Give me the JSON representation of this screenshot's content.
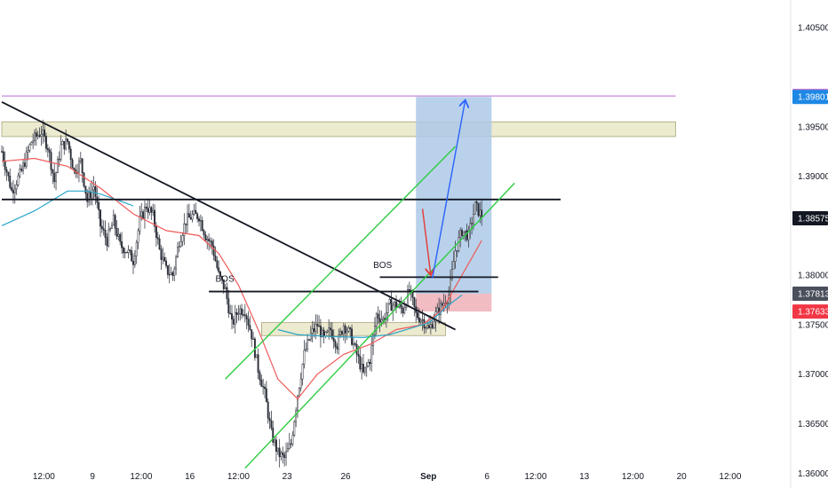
{
  "chart_data": {
    "type": "candlestick",
    "symbol_pair_note": "",
    "y_axis": {
      "ylim": [
        1.3585,
        1.4078
      ],
      "ticks": [
        "1.40500",
        "1.39500",
        "1.39000",
        "1.38000",
        "1.37500",
        "1.37000",
        "1.36500",
        "1.36000"
      ],
      "tick_values": [
        1.405,
        1.395,
        1.39,
        1.38,
        1.375,
        1.37,
        1.365,
        1.36
      ],
      "price_tags": [
        {
          "text": "1.39811",
          "value": 1.39811,
          "bg": "#c76fd1",
          "fg": "#ffffff"
        },
        {
          "text": "1.39801",
          "value": 1.39801,
          "bg": "#1e88e5",
          "fg": "#ffffff"
        },
        {
          "text": "1.38575",
          "value": 1.38575,
          "bg": "#131722",
          "fg": "#ffffff"
        },
        {
          "text": "1.37813",
          "value": 1.37813,
          "bg": "#4a4f5c",
          "fg": "#ffffff"
        },
        {
          "text": "1.37633",
          "value": 1.37633,
          "bg": "#f23645",
          "fg": "#ffffff"
        }
      ]
    },
    "x_axis": {
      "ticks": [
        "12:00",
        "9",
        "12:00",
        "16",
        "12:00",
        "23",
        "26",
        "Sep",
        "6",
        "12:00",
        "13",
        "12:00",
        "20",
        "12:00"
      ],
      "tick_index": [
        12.8,
        27.6,
        42.4,
        57.2,
        72.0,
        86.8,
        104.6,
        129.8,
        147.6,
        162.4,
        177.2,
        192.0,
        206.8,
        221.6
      ],
      "bold": [
        "Sep"
      ]
    },
    "price_path": [
      [
        0,
        1.3925
      ],
      [
        3,
        1.3885
      ],
      [
        6,
        1.3905
      ],
      [
        9,
        1.3935
      ],
      [
        12,
        1.3945
      ],
      [
        14,
        1.393
      ],
      [
        16,
        1.3895
      ],
      [
        18,
        1.393
      ],
      [
        20,
        1.3935
      ],
      [
        22,
        1.3905
      ],
      [
        24,
        1.3915
      ],
      [
        26,
        1.3875
      ],
      [
        28,
        1.389
      ],
      [
        30,
        1.385
      ],
      [
        32,
        1.3835
      ],
      [
        34,
        1.3855
      ],
      [
        36,
        1.383
      ],
      [
        38,
        1.3825
      ],
      [
        40,
        1.3815
      ],
      [
        42,
        1.3855
      ],
      [
        44,
        1.387
      ],
      [
        46,
        1.386
      ],
      [
        48,
        1.3825
      ],
      [
        50,
        1.3805
      ],
      [
        52,
        1.38
      ],
      [
        54,
        1.3835
      ],
      [
        56,
        1.3855
      ],
      [
        58,
        1.386
      ],
      [
        60,
        1.386
      ],
      [
        62,
        1.384
      ],
      [
        64,
        1.383
      ],
      [
        66,
        1.38
      ],
      [
        68,
        1.3785
      ],
      [
        70,
        1.375
      ],
      [
        72,
        1.3765
      ],
      [
        74,
        1.3765
      ],
      [
        76,
        1.374
      ],
      [
        78,
        1.3705
      ],
      [
        80,
        1.368
      ],
      [
        82,
        1.364
      ],
      [
        84,
        1.362
      ],
      [
        86,
        1.3615
      ],
      [
        88,
        1.363
      ],
      [
        90,
        1.368
      ],
      [
        92,
        1.372
      ],
      [
        94,
        1.374
      ],
      [
        96,
        1.375
      ],
      [
        98,
        1.3735
      ],
      [
        100,
        1.3745
      ],
      [
        102,
        1.373
      ],
      [
        104,
        1.375
      ],
      [
        106,
        1.374
      ],
      [
        108,
        1.372
      ],
      [
        110,
        1.37
      ],
      [
        112,
        1.3715
      ],
      [
        114,
        1.376
      ],
      [
        116,
        1.3755
      ],
      [
        118,
        1.377
      ],
      [
        120,
        1.377
      ],
      [
        122,
        1.3765
      ],
      [
        124,
        1.3785
      ],
      [
        126,
        1.376
      ],
      [
        128,
        1.3755
      ],
      [
        130,
        1.3745
      ],
      [
        132,
        1.376
      ],
      [
        134,
        1.377
      ],
      [
        136,
        1.378
      ],
      [
        138,
        1.3825
      ],
      [
        140,
        1.3845
      ],
      [
        142,
        1.384
      ],
      [
        144,
        1.387
      ],
      [
        146,
        1.386
      ]
    ],
    "moving_averages": [
      {
        "color": "#f05a5a",
        "points": [
          [
            0,
            1.3915
          ],
          [
            10,
            1.3918
          ],
          [
            20,
            1.391
          ],
          [
            30,
            1.3888
          ],
          [
            40,
            1.3862
          ],
          [
            50,
            1.3845
          ],
          [
            60,
            1.384
          ],
          [
            66,
            1.3822
          ],
          [
            72,
            1.379
          ],
          [
            78,
            1.3745
          ],
          [
            84,
            1.3695
          ],
          [
            90,
            1.3675
          ],
          [
            96,
            1.37
          ],
          [
            104,
            1.372
          ],
          [
            112,
            1.373
          ],
          [
            120,
            1.3745
          ],
          [
            128,
            1.375
          ],
          [
            134,
            1.3765
          ],
          [
            140,
            1.38
          ],
          [
            146,
            1.3835
          ]
        ]
      },
      {
        "color": "#2aa6c9",
        "points": [
          [
            0,
            1.385
          ],
          [
            10,
            1.3865
          ],
          [
            20,
            1.3885
          ],
          [
            26,
            1.3885
          ],
          [
            30,
            1.3882
          ],
          [
            36,
            1.3875
          ],
          [
            40,
            1.387
          ]
        ]
      },
      {
        "color": "#2aa6c9",
        "points": [
          [
            84,
            1.3745
          ],
          [
            90,
            1.374
          ],
          [
            100,
            1.3738
          ],
          [
            110,
            1.3737
          ],
          [
            118,
            1.374
          ],
          [
            124,
            1.3746
          ],
          [
            130,
            1.3752
          ],
          [
            136,
            1.377
          ],
          [
            140,
            1.378
          ]
        ]
      }
    ],
    "annotations": {
      "horizontal_lines": [
        {
          "name": "resistance-line",
          "value": 1.38765,
          "x_range": [
            0,
            170
          ],
          "color": "#131722"
        },
        {
          "name": "bos-level-line-1",
          "value": 1.37835,
          "x_range": [
            63,
            145
          ],
          "color": "#131722"
        },
        {
          "name": "bos-level-line-2",
          "value": 1.3798,
          "x_range": [
            115,
            151
          ],
          "color": "#131722"
        },
        {
          "name": "purple-level-line",
          "value": 1.39811,
          "x_range": [
            0,
            205
          ],
          "color": "#b36ad1"
        }
      ],
      "trendline": {
        "from": [
          0,
          1.3975
        ],
        "to": [
          138,
          1.3745
        ],
        "color": "#131722"
      },
      "channel": {
        "upper": {
          "from": [
            68,
            1.3695
          ],
          "to": [
            138,
            1.393
          ]
        },
        "lower": {
          "from": [
            74,
            1.3605
          ],
          "to": [
            156,
            1.3893
          ]
        },
        "color": "#2ecc40"
      },
      "zones": [
        {
          "name": "supply-zone",
          "y_range": [
            1.394,
            1.3955
          ],
          "x_range": [
            0,
            205
          ],
          "color": "#eceacf"
        },
        {
          "name": "demand-zone",
          "y_range": [
            1.3739,
            1.3752
          ],
          "x_range": [
            79,
            135
          ],
          "color": "#eceacf"
        }
      ],
      "position": {
        "entry": 1.37813,
        "target": 1.39801,
        "stop": 1.37633,
        "x_range": [
          126,
          149
        ],
        "profit_color": "#adc9e6",
        "loss_color": "#f0b6bd"
      },
      "labels": [
        {
          "text": "BOS",
          "x": 65,
          "value": 1.37935
        },
        {
          "text": "BOS",
          "x": 113,
          "value": 1.38075
        }
      ],
      "arrows": [
        {
          "name": "red-drop-arrow",
          "from": [
            128,
            1.3867
          ],
          "to": [
            130.5,
            1.38
          ],
          "color": "#e53935"
        },
        {
          "name": "blue-target-arrow",
          "from": [
            131,
            1.3797
          ],
          "to": [
            141,
            1.3977
          ],
          "color": "#2962ff"
        }
      ]
    }
  }
}
